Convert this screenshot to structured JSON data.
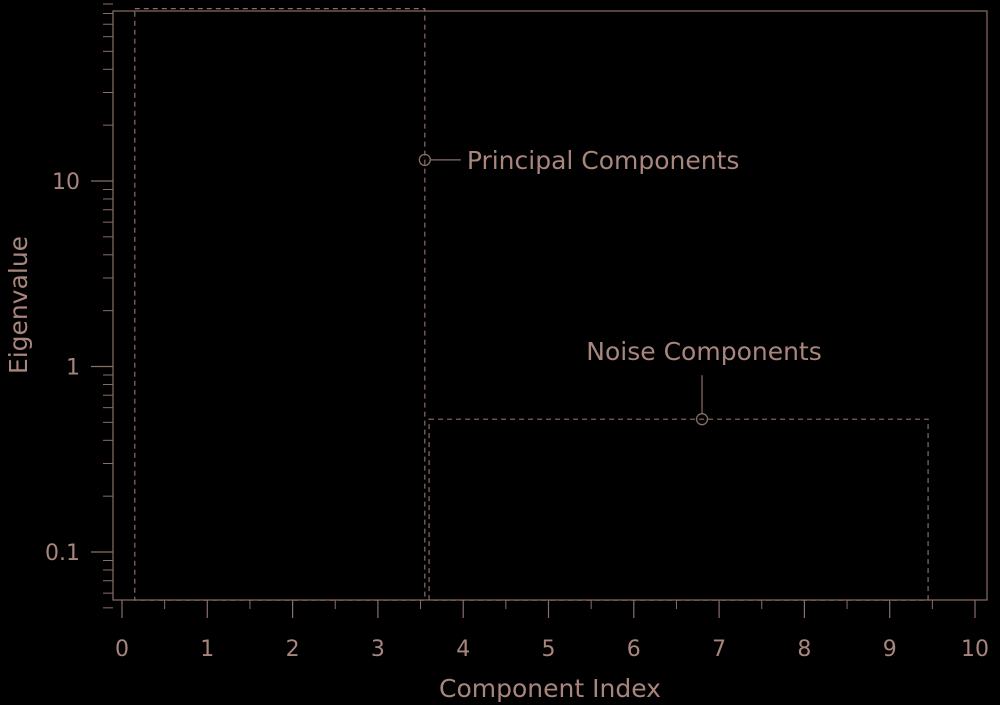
{
  "chart_data": {
    "type": "scatter",
    "xlabel": "Component Index",
    "ylabel": "Eigenvalue",
    "xlim": [
      0,
      10
    ],
    "ylim": [
      0.05,
      100
    ],
    "yscale": "log",
    "grid": false,
    "x_ticks": [
      {
        "value": 0,
        "label": "0"
      },
      {
        "value": 1,
        "label": "1"
      },
      {
        "value": 2,
        "label": "2"
      },
      {
        "value": 3,
        "label": "3"
      },
      {
        "value": 4,
        "label": "4"
      },
      {
        "value": 5,
        "label": "5"
      },
      {
        "value": 6,
        "label": "6"
      },
      {
        "value": 7,
        "label": "7"
      },
      {
        "value": 8,
        "label": "8"
      },
      {
        "value": 9,
        "label": "9"
      },
      {
        "value": 10,
        "label": "10"
      }
    ],
    "y_ticks": [
      {
        "value": 0.1,
        "label": "0.1"
      },
      {
        "value": 1,
        "label": "1"
      },
      {
        "value": 10,
        "label": "10"
      }
    ],
    "regions": [
      {
        "label": "Principal Components",
        "x": [
          0.15,
          3.55
        ],
        "y": [
          0.055,
          85
        ],
        "marker": {
          "x": 3.55,
          "y": 13
        }
      },
      {
        "label": "Noise Components",
        "x": [
          3.6,
          9.45
        ],
        "y": [
          0.055,
          0.52
        ],
        "marker": {
          "x": 6.8,
          "y": 0.52
        }
      }
    ],
    "colors": {
      "foreground": "#8a6e68",
      "text": "#a8857d",
      "background": "#000000"
    }
  }
}
